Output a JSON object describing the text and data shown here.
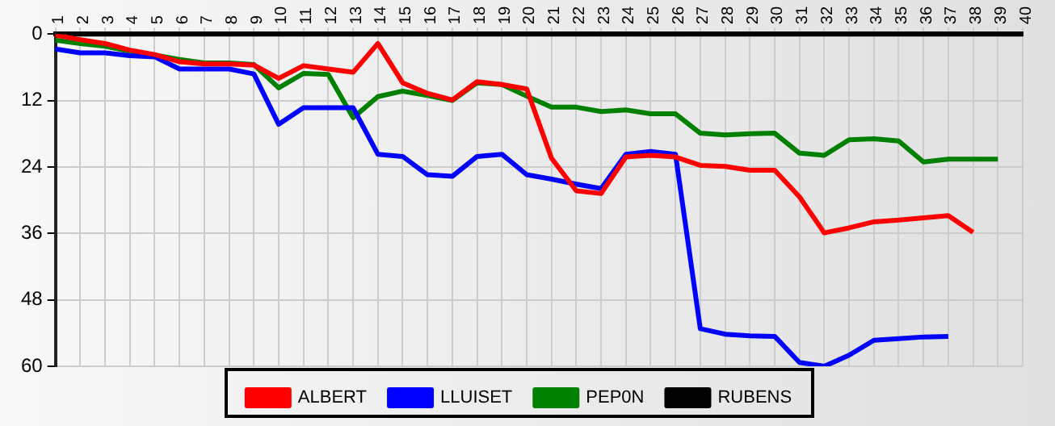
{
  "chart_data": {
    "type": "line",
    "categories": [
      "1",
      "2",
      "3",
      "4",
      "5",
      "6",
      "7",
      "8",
      "9",
      "10",
      "11",
      "12",
      "13",
      "14",
      "15",
      "16",
      "17",
      "18",
      "19",
      "20",
      "21",
      "22",
      "23",
      "24",
      "25",
      "26",
      "27",
      "28",
      "29",
      "30",
      "31",
      "32",
      "33",
      "34",
      "35",
      "36",
      "37",
      "38",
      "39",
      "40"
    ],
    "series": [
      {
        "name": "ALBERT",
        "color": "#ff0000",
        "values": [
          0.2,
          1,
          1.7,
          2.9,
          3.7,
          5,
          5.4,
          5.4,
          5.6,
          8,
          5.7,
          6.3,
          6.9,
          1.7,
          8.8,
          10.7,
          11.9,
          8.6,
          9.1,
          9.9,
          22.4,
          28.3,
          28.8,
          22.2,
          21.9,
          22.2,
          23.7,
          23.9,
          24.6,
          24.6,
          29.4,
          35.9,
          35,
          33.9,
          33.6,
          33.2,
          32.8,
          35.8,
          null,
          null
        ]
      },
      {
        "name": "LLUISET",
        "color": "#0000ff",
        "values": [
          2.7,
          3.4,
          3.4,
          3.9,
          4.1,
          6.3,
          6.3,
          6.3,
          7.2,
          16.3,
          13.3,
          13.3,
          13.3,
          21.7,
          22.1,
          25.4,
          25.7,
          22.1,
          21.7,
          25.4,
          26.2,
          27.1,
          27.9,
          21.7,
          21.2,
          21.7,
          53.2,
          54.2,
          54.5,
          54.6,
          59.3,
          60,
          58,
          55.3,
          55,
          54.7,
          54.6,
          null,
          null,
          null
        ]
      },
      {
        "name": "PEP0N",
        "color": "#008000",
        "values": [
          1.1,
          1.7,
          2.2,
          3.1,
          3.8,
          4.6,
          5.2,
          5.2,
          5.5,
          9.7,
          7.1,
          7.3,
          15.1,
          11.3,
          10.3,
          11.1,
          12,
          8.8,
          9.1,
          11.2,
          13.2,
          13.2,
          14,
          13.7,
          14.4,
          14.4,
          17.9,
          18.2,
          18,
          17.9,
          21.5,
          21.9,
          19.1,
          18.9,
          19.3,
          23.1,
          22.6,
          22.6,
          22.6,
          null
        ]
      },
      {
        "name": "RUBENS",
        "color": "#000000",
        "values": [
          0,
          0,
          0,
          0,
          0,
          0,
          0,
          0,
          0,
          0,
          0,
          0,
          0,
          0,
          0,
          0,
          0,
          0,
          0,
          0,
          0,
          0,
          0,
          0,
          0,
          0,
          0,
          0,
          0,
          0,
          0,
          0,
          0,
          0,
          0,
          0,
          0,
          0,
          0,
          0
        ]
      }
    ],
    "ylim": [
      60,
      0
    ],
    "yticks": [
      0,
      12,
      24,
      36,
      48,
      60
    ],
    "grid": true,
    "legend": "bottom",
    "marker": "none",
    "line_style": "solid"
  }
}
